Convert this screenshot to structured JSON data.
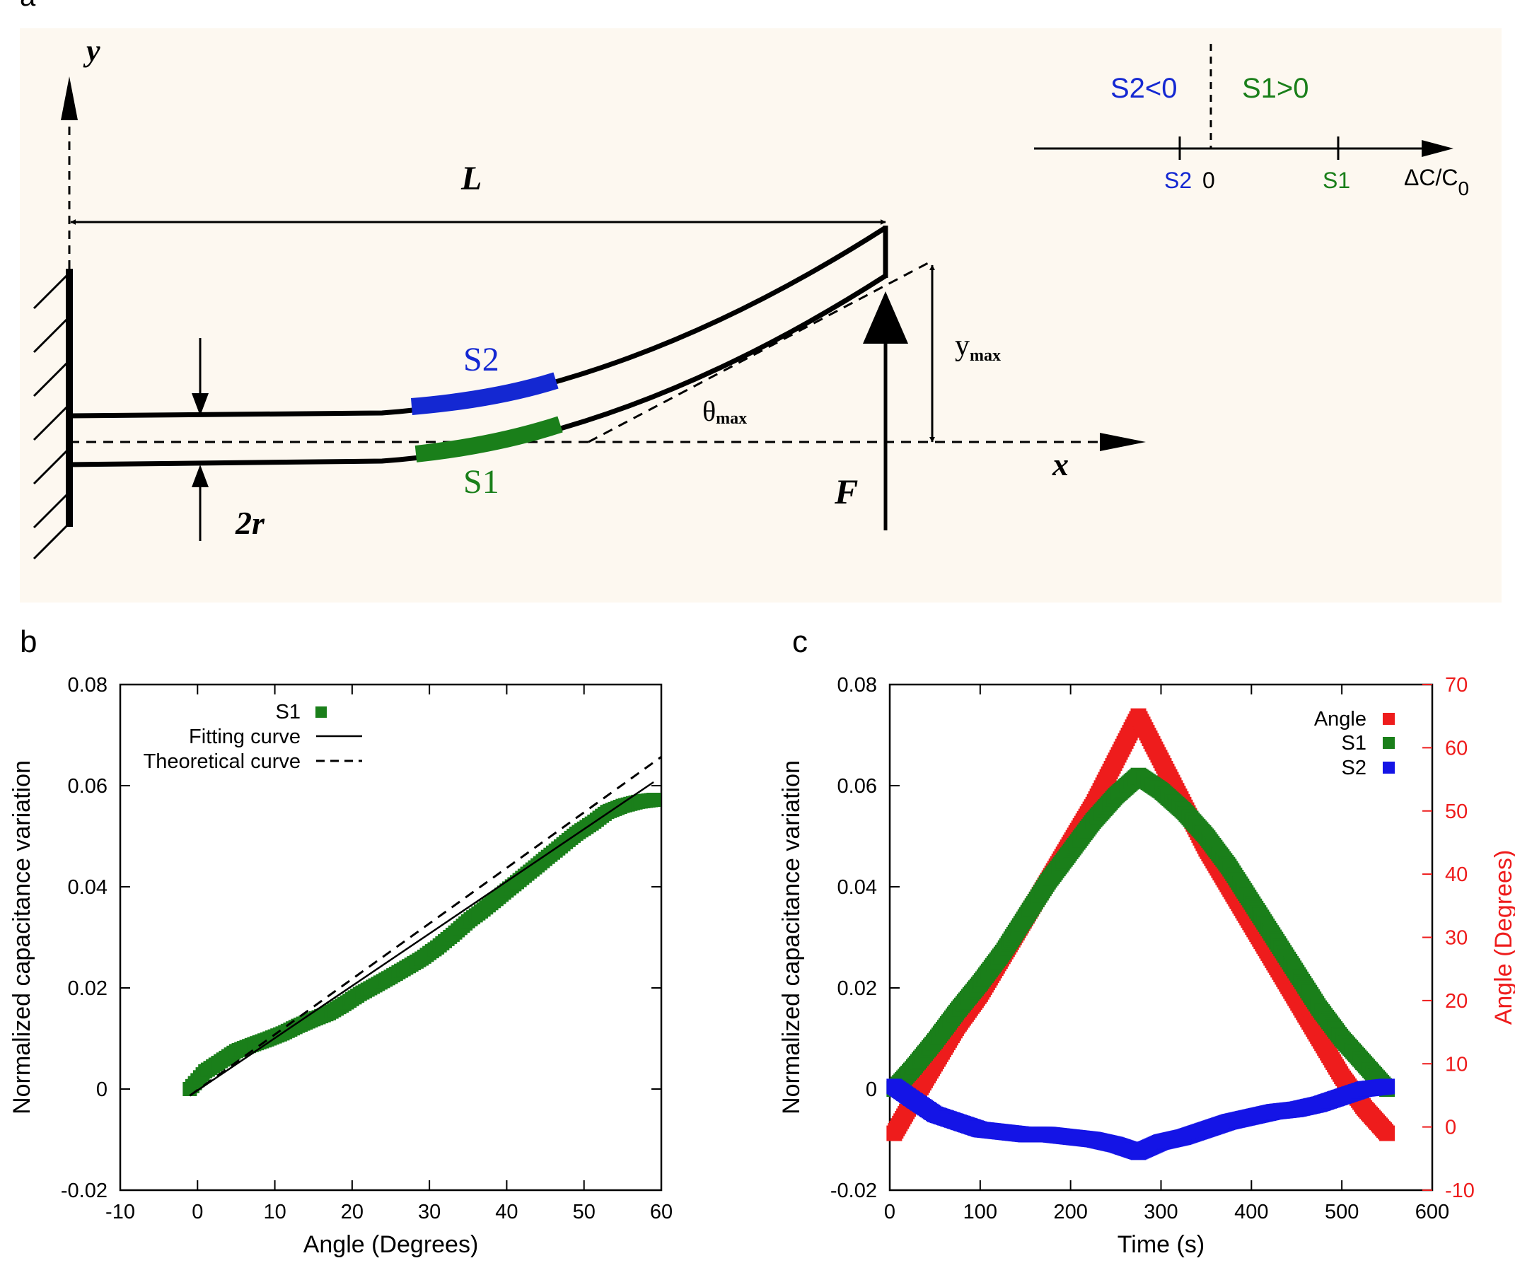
{
  "panels": {
    "a": "a",
    "b": "b",
    "c": "c"
  },
  "diagram": {
    "axis_y": "y",
    "axis_x": "x",
    "length_label": "L",
    "radius_label": "2r",
    "force_label": "F",
    "ymax_main": "y",
    "ymax_sub": "max",
    "theta_main": "θ",
    "theta_sub": "max",
    "sensor_top": "S2",
    "sensor_bottom": "S1",
    "scale": {
      "neg_label": "S2<0",
      "pos_label": "S1>0",
      "tick_s2": "S2",
      "tick_zero": "0",
      "tick_s1": "S1",
      "axis_main": "ΔC/C",
      "axis_sub": "0"
    },
    "colors": {
      "background": "#fdf8f0",
      "s1": "#1a7f1a",
      "s2": "#1428d2",
      "line": "#000000"
    }
  },
  "chart_data": [
    {
      "type": "scatter",
      "panel": "b",
      "xlabel": "Angle (Degrees)",
      "ylabel": "Normalized capacitance variation",
      "xlim": [
        -10,
        60
      ],
      "ylim": [
        -0.02,
        0.08
      ],
      "xticks": [
        -10,
        0,
        10,
        20,
        30,
        40,
        50,
        60
      ],
      "xtick_labels": [
        "-10",
        "0",
        "10",
        "20",
        "30",
        "40",
        "50",
        "60"
      ],
      "yticks": [
        -0.02,
        0,
        0.02,
        0.04,
        0.06,
        0.08
      ],
      "ytick_labels": [
        "-0.02",
        "0",
        "0.02",
        "0.04",
        "0.06",
        "0.08"
      ],
      "legend": {
        "position": "top-left",
        "entries": [
          "S1",
          "Fitting curve",
          "Theoretical curve"
        ]
      },
      "series": [
        {
          "name": "S1",
          "style": "markers",
          "color": "#1a7f1a",
          "x": [
            -1,
            1,
            3,
            5,
            7,
            9,
            11,
            13,
            15,
            17,
            19,
            21,
            23,
            25,
            27,
            29,
            31,
            33,
            35,
            37,
            39,
            41,
            43,
            45,
            47,
            49,
            51,
            53,
            55,
            57,
            59
          ],
          "y": [
            0.0,
            0.0035,
            0.0055,
            0.0075,
            0.0087,
            0.0098,
            0.011,
            0.0125,
            0.0138,
            0.015,
            0.0168,
            0.0188,
            0.0205,
            0.0222,
            0.024,
            0.0258,
            0.028,
            0.0305,
            0.0332,
            0.0355,
            0.038,
            0.0405,
            0.043,
            0.0455,
            0.048,
            0.0505,
            0.0525,
            0.0548,
            0.056,
            0.0568,
            0.0572
          ]
        },
        {
          "name": "Fitting curve",
          "style": "solid",
          "color": "#000000",
          "x": [
            -1,
            59
          ],
          "y": [
            -0.0013,
            0.0607
          ]
        },
        {
          "name": "Theoretical curve",
          "style": "dashed",
          "color": "#000000",
          "x": [
            -1,
            60
          ],
          "y": [
            -0.0013,
            0.0657
          ]
        }
      ]
    },
    {
      "type": "scatter",
      "panel": "c",
      "xlabel": "Time (s)",
      "ylabel": "Normalized capacitance variation",
      "y2label": "Angle (Degrees)",
      "xlim": [
        0,
        600
      ],
      "ylim": [
        -0.02,
        0.08
      ],
      "y2lim": [
        -10,
        70
      ],
      "xticks": [
        0,
        100,
        200,
        300,
        400,
        500,
        600
      ],
      "xtick_labels": [
        "0",
        "100",
        "200",
        "300",
        "400",
        "500",
        "600"
      ],
      "yticks": [
        -0.02,
        0,
        0.02,
        0.04,
        0.06,
        0.08
      ],
      "ytick_labels": [
        "-0.02",
        "0",
        "0.02",
        "0.04",
        "0.06",
        "0.08"
      ],
      "y2ticks": [
        -10,
        0,
        10,
        20,
        30,
        40,
        50,
        60,
        70
      ],
      "y2tick_labels": [
        "-10",
        "0",
        "10",
        "20",
        "30",
        "40",
        "50",
        "60",
        "70"
      ],
      "legend": {
        "position": "top-right",
        "entries": [
          "Angle",
          "S1",
          "S2"
        ]
      },
      "series": [
        {
          "name": "Angle",
          "axis": "right",
          "color": "#ee1c1c",
          "x": [
            5,
            25,
            50,
            75,
            100,
            125,
            150,
            175,
            200,
            225,
            250,
            275,
            300,
            325,
            350,
            375,
            400,
            425,
            450,
            475,
            500,
            525,
            550
          ],
          "y": [
            -1,
            4,
            10,
            16,
            21,
            27,
            33,
            39,
            45,
            51,
            58,
            65,
            58,
            51,
            44,
            38,
            32,
            26,
            20,
            14,
            8,
            3,
            -1
          ]
        },
        {
          "name": "S1",
          "axis": "left",
          "color": "#1a7f1a",
          "x": [
            5,
            25,
            50,
            75,
            100,
            125,
            150,
            175,
            200,
            225,
            250,
            275,
            300,
            325,
            350,
            375,
            400,
            425,
            450,
            475,
            500,
            525,
            550
          ],
          "y": [
            0.0,
            0.004,
            0.0095,
            0.0155,
            0.021,
            0.027,
            0.034,
            0.041,
            0.047,
            0.053,
            0.058,
            0.062,
            0.059,
            0.055,
            0.05,
            0.044,
            0.037,
            0.03,
            0.023,
            0.016,
            0.01,
            0.005,
            0.0
          ]
        },
        {
          "name": "S2",
          "axis": "left",
          "color": "#1414e6",
          "x": [
            5,
            25,
            50,
            75,
            100,
            125,
            150,
            175,
            200,
            225,
            250,
            275,
            300,
            325,
            350,
            375,
            400,
            425,
            450,
            475,
            500,
            525,
            550
          ],
          "y": [
            0.0005,
            -0.002,
            -0.005,
            -0.0065,
            -0.008,
            -0.0085,
            -0.009,
            -0.009,
            -0.0095,
            -0.01,
            -0.011,
            -0.0125,
            -0.0105,
            -0.0095,
            -0.008,
            -0.0065,
            -0.0055,
            -0.0045,
            -0.004,
            -0.003,
            -0.0015,
            0.0,
            0.0005
          ]
        }
      ]
    }
  ]
}
